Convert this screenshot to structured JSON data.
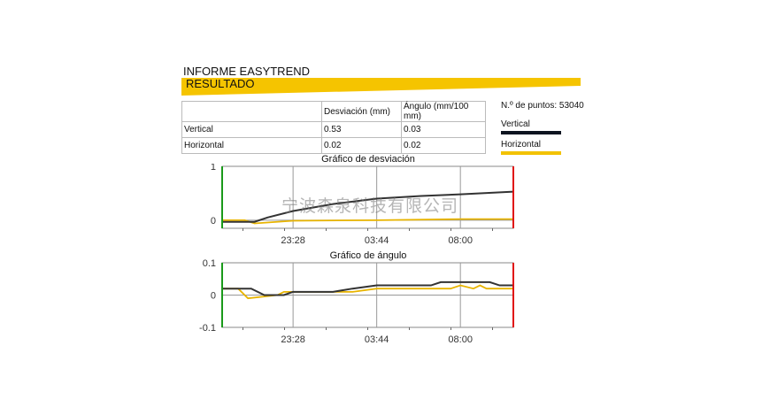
{
  "header": {
    "title": "INFORME EASYTREND",
    "section": "RESULTADO"
  },
  "table": {
    "headers": [
      "",
      "Desviación (mm)",
      "Ángulo (mm/100 mm)"
    ],
    "rows": [
      [
        "Vertical",
        "0.53",
        "0.03"
      ],
      [
        "Horizontal",
        "0.02",
        "0.02"
      ]
    ]
  },
  "legend": {
    "points_label": "N.º de puntos: 53040",
    "items": [
      {
        "label": "Vertical",
        "color": "#0d1420"
      },
      {
        "label": "Horizontal",
        "color": "#f2c200"
      }
    ]
  },
  "watermark": "宁波森泉科技有限公司",
  "colors": {
    "accent": "#f5c400",
    "start_marker": "#1a9a1a",
    "end_marker": "#e01010",
    "grid": "#999999"
  },
  "chart_data": [
    {
      "type": "line",
      "title": "Gráfico de desviación",
      "ylim": [
        -0.15,
        1
      ],
      "yticks": [
        "1",
        "0"
      ],
      "ytick_values": [
        1,
        0
      ],
      "xticks": [
        "23:28",
        "03:44",
        "08:00"
      ],
      "xrange": [
        "19:51",
        "10:42"
      ],
      "grid": true,
      "series": [
        {
          "name": "Vertical",
          "color": "#333333",
          "x": [
            "19:51",
            "21:30",
            "22:10",
            "23:28",
            "01:30",
            "03:44",
            "06:00",
            "08:00",
            "10:42"
          ],
          "values": [
            -0.03,
            -0.03,
            0.05,
            0.17,
            0.3,
            0.4,
            0.45,
            0.48,
            0.53
          ]
        },
        {
          "name": "Horizontal",
          "color": "#e8b400",
          "x": [
            "19:51",
            "21:00",
            "21:30",
            "23:28",
            "03:44",
            "08:00",
            "10:42"
          ],
          "values": [
            0.0,
            0.0,
            -0.06,
            -0.01,
            0.0,
            0.02,
            0.02
          ]
        }
      ]
    },
    {
      "type": "line",
      "title": "Gráfico de ángulo",
      "ylim": [
        -0.1,
        0.1
      ],
      "yticks": [
        "0.1",
        "0",
        "-0.1"
      ],
      "ytick_values": [
        0.1,
        0,
        -0.1
      ],
      "xticks": [
        "23:28",
        "03:44",
        "08:00"
      ],
      "xrange": [
        "19:51",
        "10:42"
      ],
      "grid": true,
      "series": [
        {
          "name": "Vertical",
          "color": "#333333",
          "x": [
            "19:51",
            "21:20",
            "22:00",
            "23:00",
            "23:28",
            "01:30",
            "02:30",
            "03:44",
            "06:30",
            "07:00",
            "09:30",
            "10:00",
            "10:42"
          ],
          "values": [
            0.02,
            0.02,
            0.0,
            0.0,
            0.01,
            0.01,
            0.02,
            0.03,
            0.03,
            0.04,
            0.04,
            0.03,
            0.03
          ]
        },
        {
          "name": "Horizontal",
          "color": "#e8b400",
          "x": [
            "19:51",
            "20:40",
            "21:10",
            "22:40",
            "23:00",
            "01:30",
            "02:30",
            "03:44",
            "07:30",
            "08:00",
            "08:40",
            "09:00",
            "09:20",
            "10:42"
          ],
          "values": [
            0.02,
            0.02,
            -0.01,
            0.0,
            0.01,
            0.01,
            0.01,
            0.02,
            0.02,
            0.03,
            0.02,
            0.03,
            0.02,
            0.02
          ]
        }
      ]
    }
  ]
}
